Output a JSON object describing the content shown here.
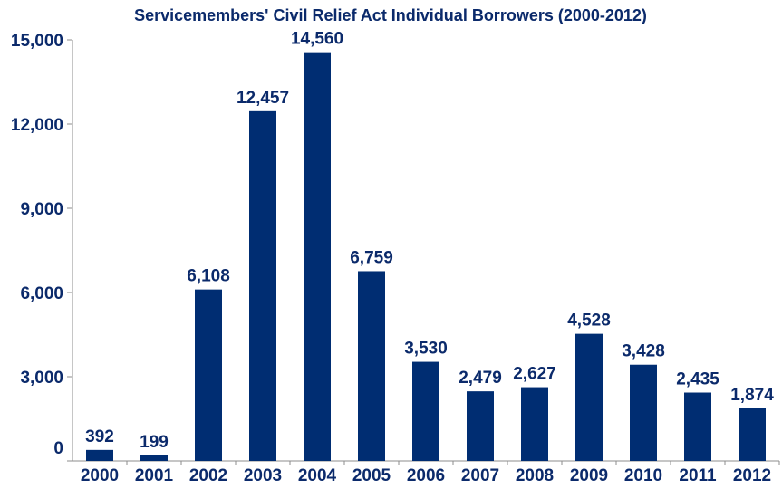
{
  "chart_data": {
    "type": "bar",
    "title": "Servicemembers' Civil Relief Act Individual Borrowers (2000-2012)",
    "xlabel": "",
    "ylabel": "",
    "categories": [
      "2000",
      "2001",
      "2002",
      "2003",
      "2004",
      "2005",
      "2006",
      "2007",
      "2008",
      "2009",
      "2010",
      "2011",
      "2012"
    ],
    "values": [
      392,
      199,
      6108,
      12457,
      14560,
      6759,
      3530,
      2479,
      2627,
      4528,
      3428,
      2435,
      1874
    ],
    "data_labels": [
      "392",
      "199",
      "6,108",
      "12,457",
      "14,560",
      "6,759",
      "3,530",
      "2,479",
      "2,627",
      "4,528",
      "3,428",
      "2,435",
      "1,874"
    ],
    "ylim": [
      0,
      15000
    ],
    "yticks": [
      0,
      3000,
      6000,
      9000,
      12000,
      15000
    ],
    "ytick_labels": [
      "0",
      "3,000",
      "6,000",
      "9,000",
      "12,000",
      "15,000"
    ],
    "grid": false,
    "legend": "none",
    "bar_color": "#002d72",
    "text_color": "#0b2a6b"
  }
}
